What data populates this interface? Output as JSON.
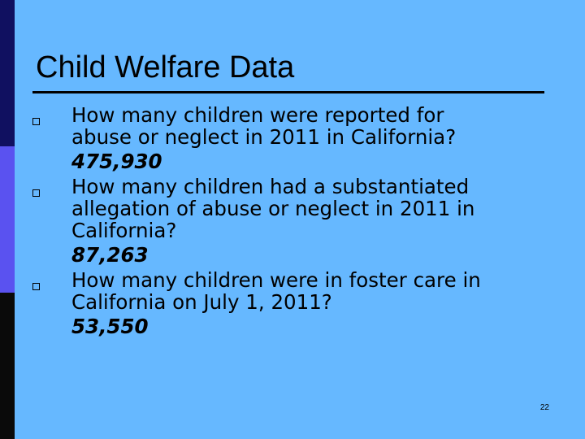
{
  "colors": {
    "background": "#66b8ff",
    "band_top": "#101060",
    "band_middle": "#5a52f0",
    "band_bottom": "#0a0a0a"
  },
  "slide": {
    "title": "Child Welfare Data",
    "bullets": [
      {
        "marker": "hollow-square-icon",
        "lines": [
          "How many children were reported for",
          "abuse or neglect in 2011 in California?"
        ],
        "answer": "475,930"
      },
      {
        "marker": "hollow-square-icon",
        "lines": [
          "How many children had a substantiated",
          "allegation of abuse or neglect in 2011 in",
          "California?"
        ],
        "answer": "87,263"
      },
      {
        "marker": "hollow-square-icon",
        "lines": [
          "How many children were in foster care in",
          "California on July 1, 2011?"
        ],
        "answer": "53,550"
      }
    ],
    "slide_number": "22"
  }
}
